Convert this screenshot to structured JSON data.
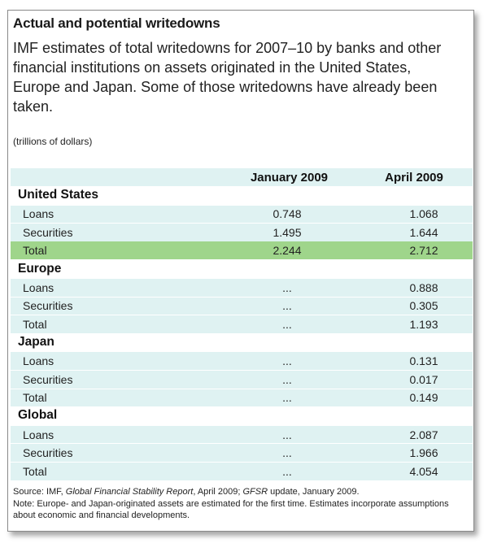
{
  "title": "Actual and potential writedowns",
  "subtitle": "IMF estimates of total writedowns for 2007–10 by banks and other financial institutions on assets originated in the United States, Europe and Japan. Some of those writedowns have already been taken.",
  "units": "(trillions of dollars)",
  "columns": {
    "jan": "January 2009",
    "apr": "April 2009"
  },
  "sections": [
    {
      "name": "United States",
      "rows": [
        {
          "label": "Loans",
          "jan": "0.748",
          "apr": "1.068"
        },
        {
          "label": "Securities",
          "jan": "1.495",
          "apr": "1.644"
        },
        {
          "label": "Total",
          "jan": "2.244",
          "apr": "2.712"
        }
      ]
    },
    {
      "name": "Europe",
      "rows": [
        {
          "label": "Loans",
          "jan": "...",
          "apr": "0.888"
        },
        {
          "label": "Securities",
          "jan": "...",
          "apr": "0.305"
        },
        {
          "label": "Total",
          "jan": "...",
          "apr": "1.193"
        }
      ]
    },
    {
      "name": "Japan",
      "rows": [
        {
          "label": "Loans",
          "jan": "...",
          "apr": "0.131"
        },
        {
          "label": "Securities",
          "jan": "...",
          "apr": "0.017"
        },
        {
          "label": "Total",
          "jan": "...",
          "apr": "0.149"
        }
      ]
    },
    {
      "name": "Global",
      "rows": [
        {
          "label": "Loans",
          "jan": "...",
          "apr": "2.087"
        },
        {
          "label": "Securities",
          "jan": "...",
          "apr": "1.966"
        },
        {
          "label": "Total",
          "jan": "...",
          "apr": "4.054"
        }
      ]
    }
  ],
  "source": {
    "prefix": "Source: IMF, ",
    "report": "Global Financial Stability Report",
    "middle": ", April 2009; ",
    "update": "GFSR",
    "suffix": " update, January 2009."
  },
  "note": "Note: Europe- and Japan-originated assets are estimated for the first time. Estimates incorporate assumptions about economic and financial developments.",
  "colors": {
    "band": "#dff2f2",
    "highlight": "#9fd58b"
  }
}
